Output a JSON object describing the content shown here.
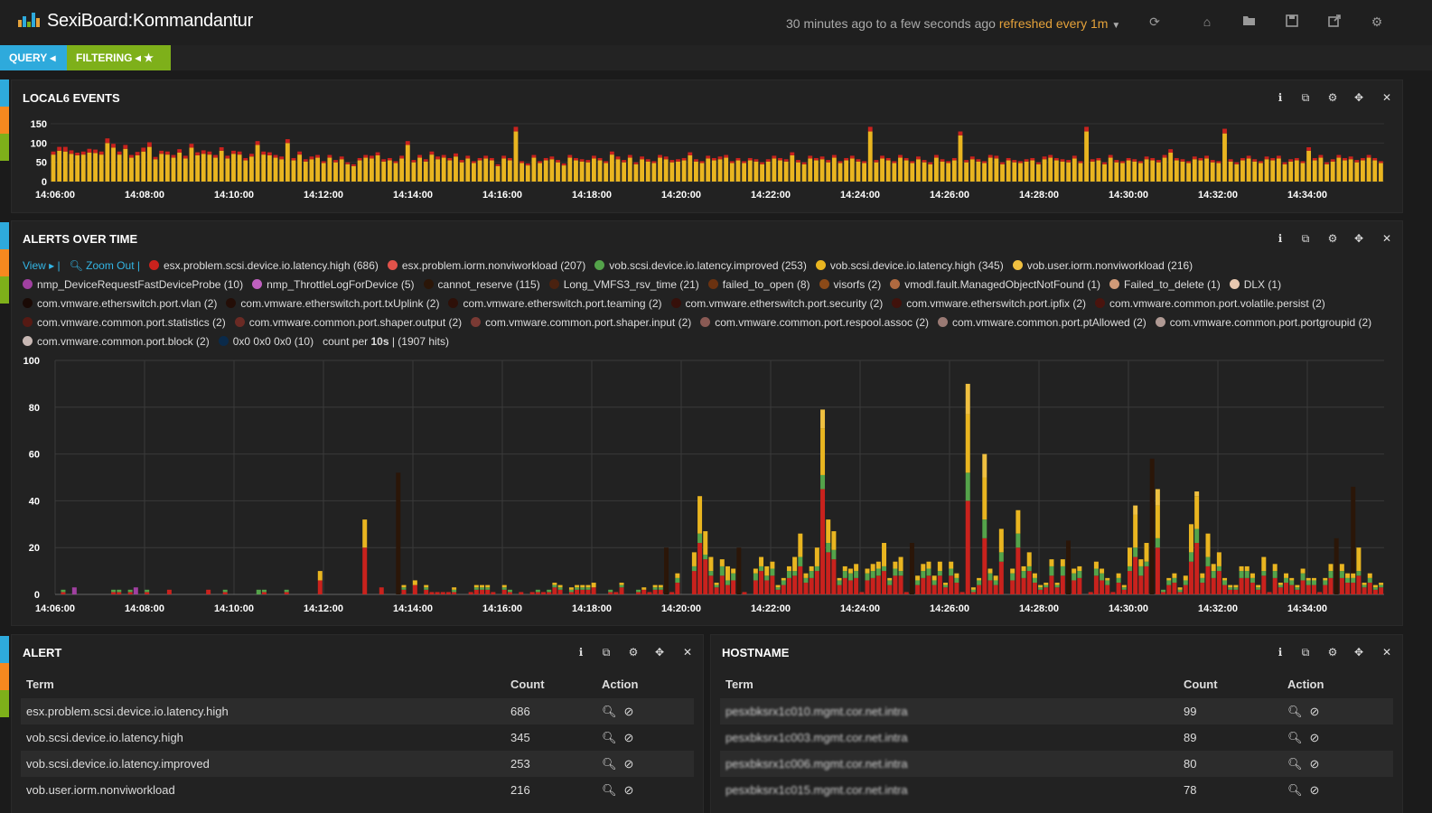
{
  "header": {
    "title": "SexiBoard:Kommandantur",
    "time_range": "30 minutes ago to a few seconds ago",
    "refresh": "refreshed every 1m"
  },
  "pills": {
    "query": "QUERY",
    "filtering": "FILTERING"
  },
  "strip_colors": [
    "#2eaadc",
    "#f6891f",
    "#7eb01a"
  ],
  "panels": {
    "events": {
      "title": "LOCAL6 EVENTS",
      "yticks": [
        "150",
        "100",
        "50",
        "0"
      ],
      "xticks": [
        "14:06:00",
        "14:08:00",
        "14:10:00",
        "14:12:00",
        "14:14:00",
        "14:16:00",
        "14:18:00",
        "14:20:00",
        "14:22:00",
        "14:24:00",
        "14:26:00",
        "14:28:00",
        "14:30:00",
        "14:32:00",
        "14:34:00"
      ]
    },
    "alerts": {
      "title": "ALERTS OVER TIME",
      "view": "View",
      "zoom_out": "Zoom Out",
      "legend": [
        {
          "label": "esx.problem.scsi.device.io.latency.high (686)",
          "color": "#c9221d"
        },
        {
          "label": "esx.problem.iorm.nonviworkload (207)",
          "color": "#e0524a"
        },
        {
          "label": "vob.scsi.device.io.latency.improved (253)",
          "color": "#54a34a"
        },
        {
          "label": "vob.scsi.device.io.latency.high (345)",
          "color": "#e9b520"
        },
        {
          "label": "vob.user.iorm.nonviworkload (216)",
          "color": "#f0c040"
        },
        {
          "label": "nmp_DeviceRequestFastDeviceProbe (10)",
          "color": "#a040a0"
        },
        {
          "label": "nmp_ThrottleLogForDevice (5)",
          "color": "#c060c0"
        },
        {
          "label": "cannot_reserve (115)",
          "color": "#2b1608"
        },
        {
          "label": "Long_VMFS3_rsv_time (21)",
          "color": "#4a2210"
        },
        {
          "label": "failed_to_open (8)",
          "color": "#6b3210"
        },
        {
          "label": "visorfs (2)",
          "color": "#8b4a18"
        },
        {
          "label": "vmodl.fault.ManagedObjectNotFound (1)",
          "color": "#b06a40"
        },
        {
          "label": "Failed_to_delete (1)",
          "color": "#d09a78"
        },
        {
          "label": "DLX (1)",
          "color": "#e8c8b0"
        },
        {
          "label": "com.vmware.etherswitch.port.vlan (2)",
          "color": "#1a0a05"
        },
        {
          "label": "com.vmware.etherswitch.port.txUplink (2)",
          "color": "#240e07"
        },
        {
          "label": "com.vmware.etherswitch.port.teaming (2)",
          "color": "#2e1008"
        },
        {
          "label": "com.vmware.etherswitch.port.security (2)",
          "color": "#36100a"
        },
        {
          "label": "com.vmware.etherswitch.port.ipfix (2)",
          "color": "#40120c"
        },
        {
          "label": "com.vmware.common.port.volatile.persist (2)",
          "color": "#4a140e"
        },
        {
          "label": "com.vmware.common.port.statistics (2)",
          "color": "#561a14"
        },
        {
          "label": "com.vmware.common.port.shaper.output (2)",
          "color": "#6a2a24"
        },
        {
          "label": "com.vmware.common.port.shaper.input (2)",
          "color": "#7a3a34"
        },
        {
          "label": "com.vmware.common.port.respool.assoc (2)",
          "color": "#8a5a54"
        },
        {
          "label": "com.vmware.common.port.ptAllowed (2)",
          "color": "#9a7a74"
        },
        {
          "label": "com.vmware.common.port.portgroupid (2)",
          "color": "#b09a94"
        },
        {
          "label": "com.vmware.common.port.block (2)",
          "color": "#c8b8b4"
        },
        {
          "label": "0x0 0x0 0x0 (10)",
          "color": "#0a2a4a"
        }
      ],
      "count_prefix": "count per",
      "interval": "10s",
      "hits": "| (1907 hits)",
      "yticks": [
        "100",
        "80",
        "60",
        "40",
        "20",
        "0"
      ],
      "xticks": [
        "14:06:00",
        "14:08:00",
        "14:10:00",
        "14:12:00",
        "14:14:00",
        "14:16:00",
        "14:18:00",
        "14:20:00",
        "14:22:00",
        "14:24:00",
        "14:26:00",
        "14:28:00",
        "14:30:00",
        "14:32:00",
        "14:34:00"
      ]
    },
    "alert_table": {
      "title": "ALERT",
      "headers": {
        "term": "Term",
        "count": "Count",
        "action": "Action"
      },
      "rows": [
        {
          "term": "esx.problem.scsi.device.io.latency.high",
          "count": "686"
        },
        {
          "term": "vob.scsi.device.io.latency.high",
          "count": "345"
        },
        {
          "term": "vob.scsi.device.io.latency.improved",
          "count": "253"
        },
        {
          "term": "vob.user.iorm.nonviworkload",
          "count": "216"
        }
      ]
    },
    "host_table": {
      "title": "HOSTNAME",
      "headers": {
        "term": "Term",
        "count": "Count",
        "action": "Action"
      },
      "rows": [
        {
          "term": "pesxbksrx1c010.mgmt.cor.net.intra",
          "count": "99"
        },
        {
          "term": "pesxbksrx1c003.mgmt.cor.net.intra",
          "count": "89"
        },
        {
          "term": "pesxbksrx1c006.mgmt.cor.net.intra",
          "count": "80"
        },
        {
          "term": "pesxbksrx1c015.mgmt.cor.net.intra",
          "count": "78"
        }
      ]
    }
  },
  "chart_data": [
    {
      "type": "bar",
      "title": "LOCAL6 EVENTS",
      "ylim": [
        0,
        150
      ],
      "x_range": [
        "14:05:50",
        "14:35:50"
      ],
      "series": [
        {
          "color": "#e9b520",
          "values": [
            70,
            80,
            78,
            72,
            68,
            70,
            75,
            74,
            70,
            100,
            88,
            70,
            85,
            62,
            68,
            78,
            90,
            58,
            72,
            70,
            62,
            75,
            60,
            88,
            68,
            72,
            70,
            62,
            80,
            60,
            72,
            70,
            55,
            65,
            95,
            70,
            68,
            62,
            58,
            100,
            55,
            70,
            52,
            58,
            62,
            48,
            62,
            50,
            58,
            45,
            40,
            55,
            62,
            60,
            68,
            52,
            55,
            48,
            60,
            95,
            50,
            62,
            52,
            70,
            58,
            62,
            55,
            65,
            50,
            60,
            48,
            55,
            60,
            55,
            40,
            60,
            55,
            130,
            48,
            42,
            62,
            48,
            55,
            58,
            50,
            42,
            62,
            55,
            52,
            50,
            60,
            55,
            48,
            70,
            58,
            50,
            62,
            45,
            58,
            52,
            48,
            62,
            58,
            50,
            52,
            55,
            68,
            52,
            48,
            60,
            55,
            58,
            62,
            48,
            55,
            48,
            55,
            52,
            45,
            52,
            60,
            55,
            52,
            68,
            50,
            45,
            60,
            55,
            58,
            50,
            62,
            48,
            55,
            60,
            52,
            48,
            130,
            50,
            60,
            55,
            48,
            62,
            55,
            48,
            58,
            50,
            45,
            62,
            52,
            48,
            55,
            120,
            50,
            58,
            52,
            48,
            62,
            60,
            45,
            55,
            50,
            48,
            52,
            55,
            45,
            58,
            62,
            55,
            52,
            50,
            60,
            48,
            130,
            52,
            55,
            45,
            62,
            50,
            48,
            55,
            52,
            48,
            58,
            55,
            50,
            62,
            75,
            55,
            52,
            48,
            58,
            55,
            60,
            50,
            48,
            125,
            52,
            45,
            55,
            60,
            52,
            48,
            58,
            55,
            60,
            45,
            52,
            55,
            48,
            80,
            55,
            62,
            45,
            52,
            62,
            55,
            58,
            50,
            55,
            62,
            55,
            48
          ]
        },
        {
          "color": "#c9221d",
          "values": [
            8,
            10,
            12,
            9,
            7,
            8,
            10,
            9,
            8,
            12,
            10,
            8,
            10,
            7,
            9,
            10,
            12,
            6,
            8,
            8,
            7,
            9,
            7,
            10,
            8,
            9,
            8,
            7,
            9,
            7,
            8,
            8,
            6,
            7,
            10,
            8,
            8,
            7,
            7,
            10,
            6,
            8,
            6,
            7,
            7,
            5,
            7,
            6,
            7,
            5,
            5,
            6,
            7,
            7,
            8,
            6,
            6,
            5,
            7,
            10,
            6,
            7,
            6,
            8,
            7,
            7,
            6,
            8,
            6,
            7,
            5,
            6,
            7,
            6,
            5,
            7,
            6,
            12,
            5,
            5,
            7,
            5,
            6,
            7,
            6,
            5,
            7,
            6,
            6,
            6,
            7,
            6,
            5,
            8,
            7,
            6,
            7,
            5,
            7,
            6,
            5,
            7,
            7,
            6,
            6,
            6,
            8,
            6,
            5,
            7,
            6,
            7,
            7,
            5,
            6,
            5,
            6,
            6,
            5,
            6,
            7,
            6,
            6,
            8,
            6,
            5,
            7,
            6,
            7,
            6,
            7,
            5,
            6,
            7,
            6,
            5,
            12,
            6,
            7,
            6,
            5,
            7,
            6,
            5,
            7,
            6,
            5,
            7,
            6,
            5,
            6,
            10,
            6,
            7,
            6,
            5,
            7,
            7,
            5,
            6,
            6,
            5,
            6,
            6,
            5,
            7,
            7,
            6,
            6,
            6,
            7,
            5,
            12,
            6,
            6,
            5,
            7,
            6,
            5,
            6,
            6,
            5,
            7,
            6,
            6,
            7,
            9,
            6,
            6,
            5,
            7,
            6,
            7,
            6,
            5,
            12,
            6,
            5,
            6,
            7,
            6,
            5,
            7,
            6,
            7,
            5,
            6,
            6,
            5,
            9,
            6,
            7,
            5,
            6,
            7,
            6,
            7,
            6,
            6,
            7,
            6,
            5
          ]
        }
      ]
    },
    {
      "type": "bar",
      "title": "ALERTS OVER TIME",
      "ylim": [
        0,
        100
      ],
      "x_range": [
        "14:05:50",
        "14:35:50"
      ],
      "series": [
        {
          "name": "esx.problem.scsi.device.io.latency.high",
          "color": "#c9221d",
          "values": [
            0,
            0,
            0,
            0,
            0,
            0,
            0,
            0,
            0,
            0,
            0,
            0,
            0,
            0,
            0,
            0,
            0,
            0,
            0,
            0,
            0,
            0,
            0,
            0,
            0,
            0,
            0,
            0,
            0,
            0,
            0,
            0,
            0,
            0,
            0,
            0,
            0,
            0,
            0,
            0,
            0,
            0,
            0,
            0,
            0,
            0,
            0,
            0,
            0,
            0,
            0,
            0,
            0,
            0,
            0,
            0,
            0,
            0,
            0,
            0,
            0,
            0,
            0,
            0,
            0,
            0,
            0,
            0,
            0,
            0,
            0,
            0,
            0,
            0,
            0,
            0,
            0,
            1,
            0,
            0,
            0,
            1,
            0,
            0,
            0,
            0,
            0,
            0,
            0,
            0,
            0,
            0,
            0,
            0,
            0,
            0,
            1,
            0,
            0,
            0,
            0,
            0,
            0,
            0,
            0,
            0,
            0,
            0,
            0,
            0,
            0,
            0,
            0,
            0,
            0,
            0,
            0,
            0,
            0,
            0,
            0,
            0,
            0,
            0,
            0,
            0,
            0,
            0,
            0,
            0,
            0,
            0,
            0,
            0,
            0,
            0,
            0,
            0,
            0,
            1,
            0,
            0,
            0,
            2,
            0,
            0,
            0,
            0,
            0,
            0,
            0,
            0,
            0,
            0,
            0,
            0,
            0,
            0,
            0,
            0,
            0,
            0,
            0,
            0,
            0,
            0,
            0,
            0,
            0,
            0,
            0,
            0,
            0,
            0,
            0,
            0,
            0,
            0,
            0,
            0,
            0,
            0,
            0,
            0,
            0,
            0,
            0,
            0,
            0,
            0,
            0,
            0,
            0,
            0,
            0,
            0,
            0,
            0,
            0,
            0,
            0,
            0,
            0,
            0,
            0,
            0,
            0,
            0,
            0,
            0,
            0,
            0,
            0,
            0,
            0,
            0,
            0,
            0,
            0,
            0,
            0,
            0,
            0,
            0,
            0,
            0,
            0,
            0,
            0,
            0,
            0,
            0,
            0,
            0,
            0,
            0,
            0,
            0,
            0,
            0,
            0,
            0,
            0,
            0,
            0,
            0,
            0,
            0,
            0,
            0,
            0,
            0,
            0,
            0,
            0,
            0,
            0,
            0,
            0,
            0,
            0,
            0
          ]
        }
      ],
      "note": "stacked multi-series histogram; per-series values estimated visually"
    }
  ]
}
